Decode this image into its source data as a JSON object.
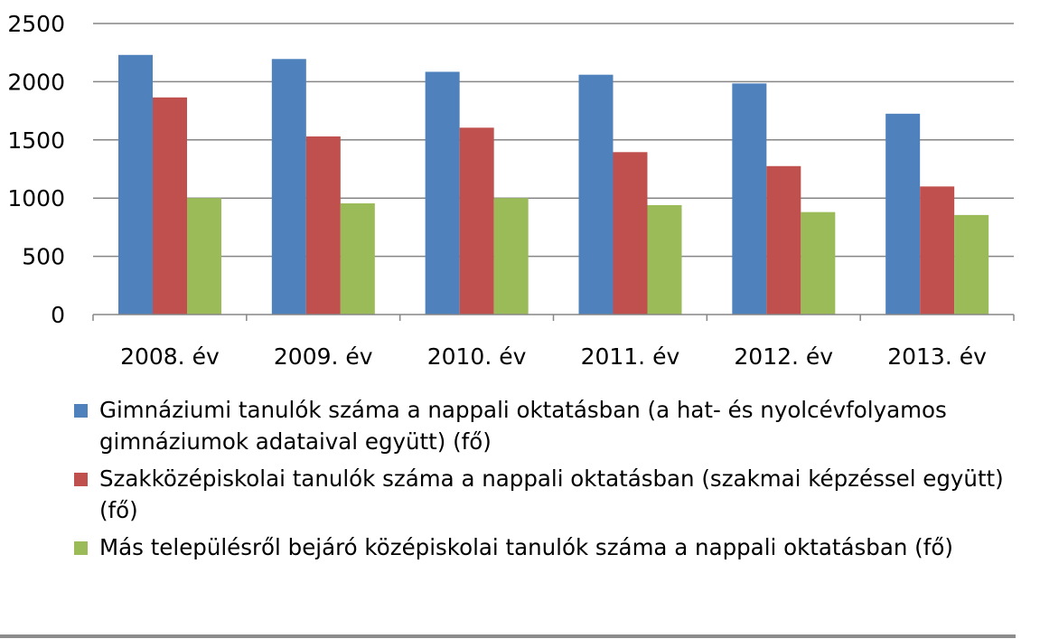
{
  "chart_data": {
    "type": "bar",
    "categories": [
      "2008. év",
      "2009. év",
      "2010. év",
      "2011. év",
      "2012. év",
      "2013. év"
    ],
    "series": [
      {
        "name": "Gimnáziumi tanulók száma a nappali oktatásban (a hat- és nyolcévfolyamos gimnáziumok adataival együtt) (fő)",
        "color": "#4f81bd",
        "values": [
          2230,
          2195,
          2085,
          2060,
          1985,
          1725
        ]
      },
      {
        "name": "Szakközépiskolai tanulók száma a nappali oktatásban (szakmai képzéssel együtt) (fő)",
        "color": "#c0504d",
        "values": [
          1865,
          1530,
          1605,
          1395,
          1275,
          1100
        ]
      },
      {
        "name": "Más településről bejáró középiskolai tanulók száma a nappali oktatásban (fő)",
        "color": "#9bbb59",
        "values": [
          1000,
          955,
          1000,
          940,
          880,
          855
        ]
      }
    ],
    "y_ticks": [
      "0",
      "500",
      "1000",
      "1500",
      "2000",
      "2500"
    ],
    "ylim": [
      0,
      2500
    ],
    "grid": true,
    "legend_position": "bottom"
  }
}
